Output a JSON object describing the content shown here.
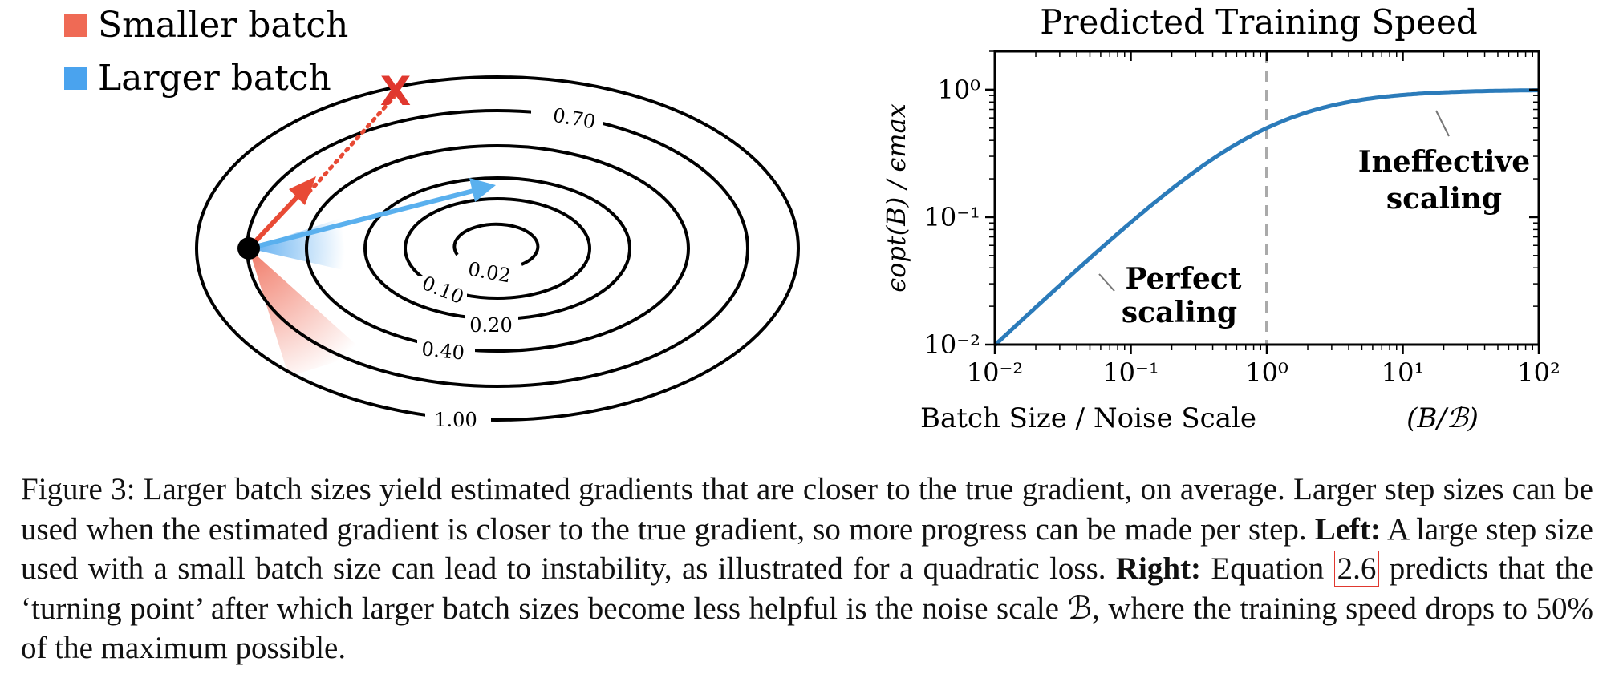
{
  "left_panel": {
    "legend": [
      {
        "label": "Smaller batch",
        "color": "#ef6a55"
      },
      {
        "label": "Larger batch",
        "color": "#4aa3ee"
      }
    ],
    "contour_labels": [
      "0.02",
      "0.10",
      "0.20",
      "0.40",
      "0.70",
      "1.00"
    ],
    "divergence_marker": "X",
    "colors": {
      "small_step": "#e84a35",
      "large_step": "#5ab0ee",
      "marker": "#e0382f"
    }
  },
  "right_panel": {
    "title": "Predicted Training Speed",
    "xlabel_text": "Batch Size / Noise Scale",
    "xlabel_math": "(B/ℬ)",
    "ylabel": "ϵopt(B) / ϵmax",
    "annotations": {
      "perfect_line1": "Perfect",
      "perfect_line2": "scaling",
      "ineffective_line1": "Ineffective",
      "ineffective_line2": "scaling"
    },
    "chart_data": {
      "type": "line",
      "title": "Predicted Training Speed",
      "xlabel": "Batch Size / Noise Scale (B/ℬ)",
      "ylabel": "ϵopt(B) / ϵmax",
      "xscale": "log",
      "yscale": "log",
      "xlim": [
        0.01,
        100
      ],
      "ylim": [
        0.01,
        2
      ],
      "x_ticks": [
        "10⁻²",
        "10⁻¹",
        "10⁰",
        "10¹",
        "10²"
      ],
      "y_ticks": [
        "10⁻²",
        "10⁻¹",
        "10⁰"
      ],
      "x": [
        0.01,
        0.02,
        0.05,
        0.1,
        0.2,
        0.5,
        1,
        2,
        5,
        10,
        20,
        50,
        100
      ],
      "series": [
        {
          "values": [
            0.0099,
            0.0196,
            0.0476,
            0.0909,
            0.1667,
            0.3333,
            0.5,
            0.6667,
            0.8333,
            0.9091,
            0.9524,
            0.9804,
            0.9901
          ],
          "color": "#2b7bba"
        }
      ],
      "vline": {
        "x": 1,
        "style": "dashed",
        "color": "#aaaaaa"
      },
      "grid": false
    }
  },
  "caption": {
    "figure_label": "Figure 3:",
    "text1": " Larger batch sizes yield estimated gradients that are closer to the true gradient, on average. Larger step sizes can be used when the estimated gradient is closer to the true gradient, so more progress can be made per step. ",
    "left_label": "Left:",
    "text2": " A large step size used with a small batch size can lead to instability, as illustrated for a quadratic loss. ",
    "right_label": "Right:",
    "text3": " Equation ",
    "eq_ref": "2.6",
    "text4": " predicts that the ‘turning point’ after which larger batch sizes become less helpful is the noise scale ℬ, where the training speed drops to 50% of the maximum possible."
  }
}
